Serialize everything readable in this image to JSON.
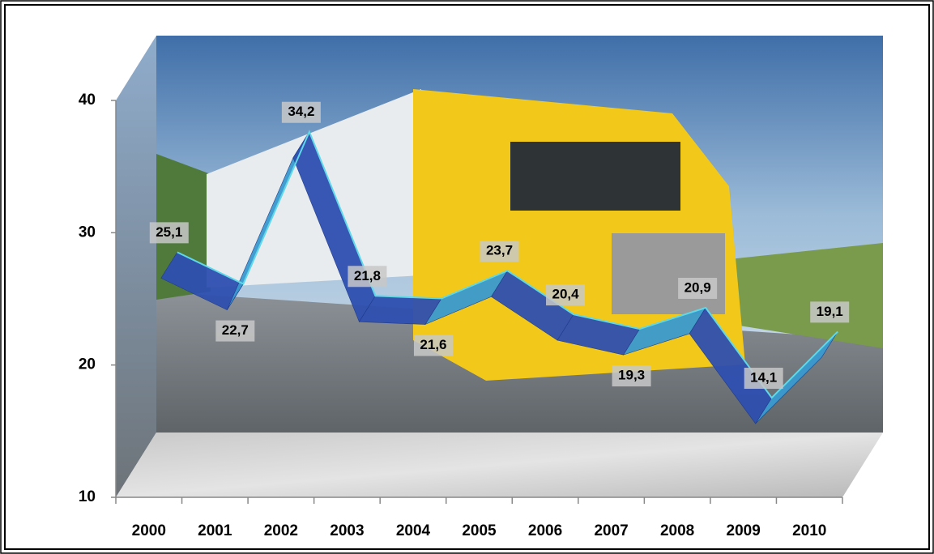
{
  "chart_data": {
    "type": "line",
    "categories": [
      "2000",
      "2001",
      "2002",
      "2003",
      "2004",
      "2005",
      "2006",
      "2007",
      "2008",
      "2009",
      "2010"
    ],
    "values": [
      25.1,
      22.7,
      34.2,
      21.8,
      21.6,
      23.7,
      20.4,
      19.3,
      20.9,
      14.1,
      19.1
    ],
    "value_labels": [
      "25,1",
      "22,7",
      "34,2",
      "21,8",
      "21,6",
      "23,7",
      "20,4",
      "19,3",
      "20,9",
      "14,1",
      "19,1"
    ],
    "color": "#3a9ad0",
    "ylim": [
      10,
      40
    ],
    "yticks": [
      10,
      20,
      30,
      40
    ],
    "grid": false
  }
}
